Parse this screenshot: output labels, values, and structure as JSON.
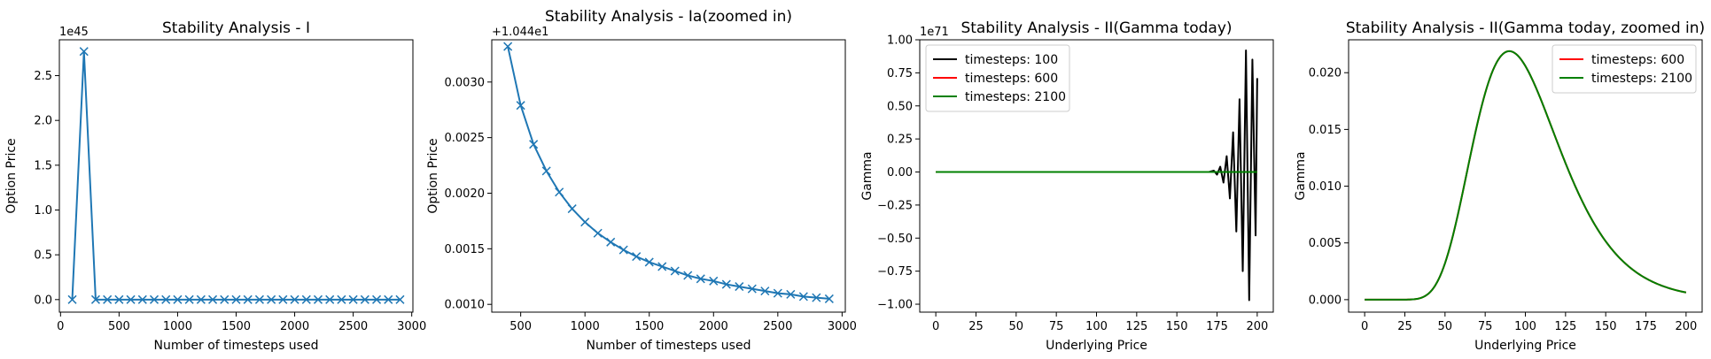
{
  "chart_data": [
    {
      "type": "line",
      "title": "Stability Analysis - I",
      "xlabel": "Number of timesteps used",
      "ylabel": "Option Price",
      "offset_text": "1e45",
      "xlim": [
        -10,
        3010
      ],
      "ylim": [
        -0.14,
        2.9
      ],
      "xticks": [
        0,
        500,
        1000,
        1500,
        2000,
        2500,
        3000
      ],
      "xtick_labels": [
        "0",
        "500",
        "1000",
        "1500",
        "2000",
        "2500",
        "3000"
      ],
      "yticks": [
        0.0,
        0.5,
        1.0,
        1.5,
        2.0,
        2.5
      ],
      "ytick_labels": [
        "0.0",
        "0.5",
        "1.0",
        "1.5",
        "2.0",
        "2.5"
      ],
      "series": [
        {
          "color": "#1f77b4",
          "marker": "x",
          "x": [
            100,
            200,
            300,
            400,
            500,
            600,
            700,
            800,
            900,
            1000,
            1100,
            1200,
            1300,
            1400,
            1500,
            1600,
            1700,
            1800,
            1900,
            2000,
            2100,
            2200,
            2300,
            2400,
            2500,
            2600,
            2700,
            2800,
            2900
          ],
          "y": [
            0.0,
            2.77,
            0,
            0,
            0,
            0,
            0,
            0,
            0,
            0,
            0,
            0,
            0,
            0,
            0,
            0,
            0,
            0,
            0,
            0,
            0,
            0,
            0,
            0,
            0,
            0,
            0,
            0,
            0
          ]
        }
      ]
    },
    {
      "type": "line",
      "title": "Stability Analysis - Ia(zoomed in)",
      "xlabel": "Number of timesteps used",
      "ylabel": "Option Price",
      "offset_text": "+1.044e1",
      "xlim": [
        275,
        3025
      ],
      "ylim": [
        0.00093,
        0.00338
      ],
      "xticks": [
        500,
        1000,
        1500,
        2000,
        2500,
        3000
      ],
      "xtick_labels": [
        "500",
        "1000",
        "1500",
        "2000",
        "2500",
        "3000"
      ],
      "yticks": [
        0.001,
        0.0015,
        0.002,
        0.0025,
        0.003
      ],
      "ytick_labels": [
        "0.0010",
        "0.0015",
        "0.0020",
        "0.0025",
        "0.0030"
      ],
      "series": [
        {
          "color": "#1f77b4",
          "marker": "x",
          "x": [
            400,
            500,
            600,
            700,
            800,
            900,
            1000,
            1100,
            1200,
            1300,
            1400,
            1500,
            1600,
            1700,
            1800,
            1900,
            2000,
            2100,
            2200,
            2300,
            2400,
            2500,
            2600,
            2700,
            2800,
            2900
          ],
          "y": [
            0.00332,
            0.00279,
            0.00244,
            0.0022,
            0.00201,
            0.00186,
            0.00174,
            0.00164,
            0.00156,
            0.00149,
            0.00143,
            0.00138,
            0.00134,
            0.0013,
            0.00126,
            0.00123,
            0.00121,
            0.00118,
            0.00116,
            0.00114,
            0.00112,
            0.0011,
            0.00109,
            0.00107,
            0.00106,
            0.00105
          ]
        }
      ]
    },
    {
      "type": "line",
      "title": "Stability Analysis - II(Gamma today)",
      "xlabel": "Underlying Price",
      "ylabel": "Gamma",
      "offset_text": "1e71",
      "xlim": [
        -10,
        210
      ],
      "ylim": [
        -1.06,
        1.0
      ],
      "xticks": [
        0,
        25,
        50,
        75,
        100,
        125,
        150,
        175,
        200
      ],
      "xtick_labels": [
        "0",
        "25",
        "50",
        "75",
        "100",
        "125",
        "150",
        "175",
        "200"
      ],
      "yticks": [
        -1.0,
        -0.75,
        -0.5,
        -0.25,
        0.0,
        0.25,
        0.5,
        0.75,
        1.0
      ],
      "ytick_labels": [
        "−1.00",
        "−0.75",
        "−0.50",
        "−0.25",
        "0.00",
        "0.25",
        "0.50",
        "0.75",
        "1.00"
      ],
      "legend": "upper left",
      "series": [
        {
          "name": "timesteps: 100",
          "color": "#000000",
          "x": [
            0,
            170,
            173,
            175,
            177,
            179,
            181,
            183,
            185,
            187,
            189,
            191,
            193,
            195,
            197,
            199,
            200
          ],
          "y": [
            0,
            0,
            0.01,
            -0.02,
            0.04,
            -0.08,
            0.12,
            -0.2,
            0.3,
            -0.45,
            0.55,
            -0.75,
            0.92,
            -0.97,
            0.85,
            -0.48,
            0.71
          ]
        },
        {
          "name": "timesteps: 600",
          "color": "#ff0000",
          "x": [
            0,
            200
          ],
          "y": [
            0,
            0
          ]
        },
        {
          "name": "timesteps: 2100",
          "color": "#008000",
          "x": [
            0,
            200
          ],
          "y": [
            0,
            0
          ]
        }
      ]
    },
    {
      "type": "line",
      "title": "Stability Analysis - II(Gamma today, zoomed in)",
      "xlabel": "Underlying Price",
      "ylabel": "Gamma",
      "offset_text": "",
      "xlim": [
        -10,
        210
      ],
      "ylim": [
        -0.0011,
        0.0229
      ],
      "xticks": [
        0,
        25,
        50,
        75,
        100,
        125,
        150,
        175,
        200
      ],
      "xtick_labels": [
        "0",
        "25",
        "50",
        "75",
        "100",
        "125",
        "150",
        "175",
        "200"
      ],
      "yticks": [
        0.0,
        0.005,
        0.01,
        0.015,
        0.02
      ],
      "ytick_labels": [
        "0.000",
        "0.005",
        "0.010",
        "0.015",
        "0.020"
      ],
      "legend": "upper right",
      "series": [
        {
          "name": "timesteps: 600",
          "color": "#ff0000",
          "curve": "lognormal-gamma",
          "peak_x": 90,
          "peak_y": 0.0219
        },
        {
          "name": "timesteps: 2100",
          "color": "#008000",
          "curve": "lognormal-gamma",
          "peak_x": 90,
          "peak_y": 0.0219
        }
      ]
    }
  ]
}
